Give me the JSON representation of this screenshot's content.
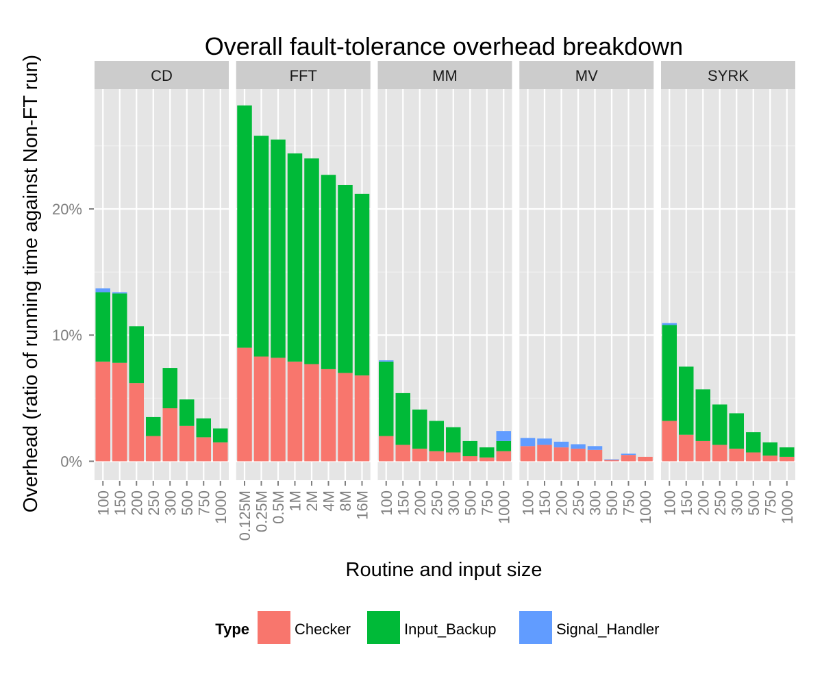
{
  "chart_data": {
    "type": "bar",
    "stacked": true,
    "title": "Overall fault-tolerance overhead breakdown",
    "xlabel": "Routine and input size",
    "ylabel": "Overhead (ratio of running time against Non-FT run)",
    "ylim": [
      -1.5,
      29.5
    ],
    "yticks": [
      0,
      10,
      20
    ],
    "ytick_labels": [
      "0%",
      "10%",
      "20%"
    ],
    "grid": true,
    "legend": {
      "title": "Type",
      "position": "bottom",
      "entries": [
        "Checker",
        "Input_Backup",
        "Signal_Handler"
      ]
    },
    "colors": {
      "Checker": "#F8766D",
      "Input_Backup": "#00BA38",
      "Signal_Handler": "#619CFF",
      "panel_bg": "#E5E5E5",
      "strip_bg": "#CCCCCC"
    },
    "facets": [
      {
        "name": "CD",
        "categories": [
          "100",
          "150",
          "200",
          "250",
          "300",
          "500",
          "750",
          "1000"
        ],
        "series": [
          {
            "name": "Checker",
            "values": [
              7.9,
              7.8,
              6.2,
              2.0,
              4.2,
              2.8,
              1.9,
              1.5
            ]
          },
          {
            "name": "Input_Backup",
            "values": [
              5.5,
              5.5,
              4.5,
              1.5,
              3.2,
              2.1,
              1.5,
              1.1
            ]
          },
          {
            "name": "Signal_Handler",
            "values": [
              0.3,
              0.1,
              0.0,
              0.0,
              0.0,
              0.0,
              0.0,
              0.0
            ]
          }
        ]
      },
      {
        "name": "FFT",
        "categories": [
          "0.125M",
          "0.25M",
          "0.5M",
          "1M",
          "2M",
          "4M",
          "8M",
          "16M"
        ],
        "series": [
          {
            "name": "Checker",
            "values": [
              9.0,
              8.3,
              8.2,
              7.9,
              7.7,
              7.3,
              7.0,
              6.8
            ]
          },
          {
            "name": "Input_Backup",
            "values": [
              19.2,
              17.5,
              17.3,
              16.5,
              16.3,
              15.4,
              14.9,
              14.4
            ]
          },
          {
            "name": "Signal_Handler",
            "values": [
              0.0,
              0.0,
              0.0,
              0.0,
              0.0,
              0.0,
              0.0,
              0.0
            ]
          }
        ]
      },
      {
        "name": "MM",
        "categories": [
          "100",
          "150",
          "200",
          "250",
          "300",
          "500",
          "750",
          "1000"
        ],
        "series": [
          {
            "name": "Checker",
            "values": [
              2.0,
              1.3,
              1.0,
              0.8,
              0.7,
              0.4,
              0.3,
              0.8
            ]
          },
          {
            "name": "Input_Backup",
            "values": [
              5.9,
              4.1,
              3.1,
              2.4,
              2.0,
              1.2,
              0.8,
              0.8
            ]
          },
          {
            "name": "Signal_Handler",
            "values": [
              0.1,
              0.0,
              0.0,
              0.0,
              0.0,
              0.0,
              0.0,
              0.8
            ]
          }
        ]
      },
      {
        "name": "MV",
        "categories": [
          "100",
          "150",
          "200",
          "250",
          "300",
          "500",
          "750",
          "1000"
        ],
        "series": [
          {
            "name": "Checker",
            "values": [
              1.2,
              1.3,
              1.1,
              1.0,
              0.9,
              0.1,
              0.5,
              0.35
            ]
          },
          {
            "name": "Input_Backup",
            "values": [
              0.0,
              0.0,
              0.0,
              0.0,
              0.0,
              0.0,
              0.0,
              0.0
            ]
          },
          {
            "name": "Signal_Handler",
            "values": [
              0.65,
              0.5,
              0.45,
              0.35,
              0.3,
              0.05,
              0.1,
              0.0
            ]
          }
        ]
      },
      {
        "name": "SYRK",
        "categories": [
          "100",
          "150",
          "200",
          "250",
          "300",
          "500",
          "750",
          "1000"
        ],
        "series": [
          {
            "name": "Checker",
            "values": [
              3.2,
              2.1,
              1.6,
              1.3,
              1.0,
              0.7,
              0.45,
              0.35
            ]
          },
          {
            "name": "Input_Backup",
            "values": [
              7.6,
              5.4,
              4.1,
              3.2,
              2.8,
              1.6,
              1.05,
              0.75
            ]
          },
          {
            "name": "Signal_Handler",
            "values": [
              0.15,
              0.0,
              0.0,
              0.0,
              0.0,
              0.0,
              0.0,
              0.0
            ]
          }
        ]
      }
    ]
  }
}
